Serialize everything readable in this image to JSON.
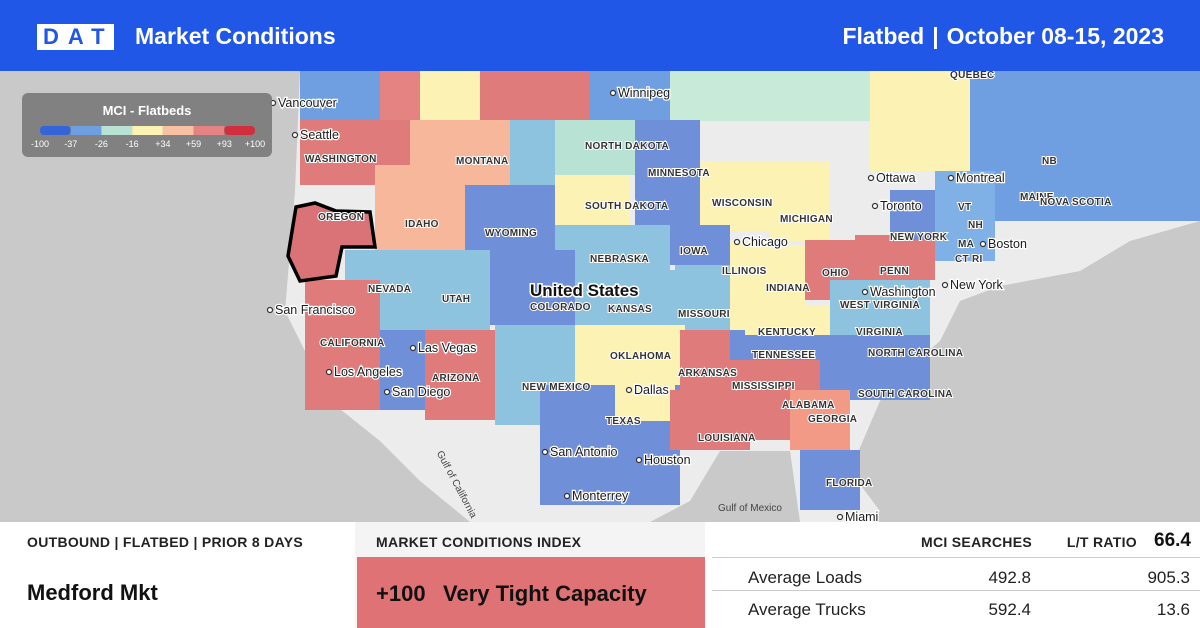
{
  "header": {
    "logo": "DAT",
    "title": "Market Conditions",
    "equipment": "Flatbed",
    "separator": "|",
    "date_range": "October 08-15, 2023"
  },
  "legend": {
    "title": "MCI - Flatbeds",
    "ticks": [
      {
        "value": -100,
        "label": "-100"
      },
      {
        "value": -37,
        "label": "-37"
      },
      {
        "value": -26,
        "label": "-26"
      },
      {
        "value": -16,
        "label": "-16"
      },
      {
        "value": 34,
        "label": "+34"
      },
      {
        "value": 59,
        "label": "+59"
      },
      {
        "value": 93,
        "label": "+93"
      },
      {
        "value": 100,
        "label": "+100"
      }
    ],
    "colors": [
      "#3563d8",
      "#6f9fe0",
      "#b7e2d4",
      "#fbf2b4",
      "#f7c2a4",
      "#e58383",
      "#d12f3e"
    ]
  },
  "map_labels": [
    "Vancouver",
    "Seattle",
    "WASHINGTON",
    "OREGON",
    "IDAHO",
    "MONTANA",
    "NORTH DAKOTA",
    "SOUTH DAKOTA",
    "WYOMING",
    "NEBRASKA",
    "NEVADA",
    "UTAH",
    "COLORADO",
    "KANSAS",
    "United States",
    "San Francisco",
    "CALIFORNIA",
    "Las Vegas",
    "ARIZONA",
    "NEW MEXICO",
    "Los Angeles",
    "San Diego",
    "OKLAHOMA",
    "Dallas",
    "TEXAS",
    "San Antonio",
    "Houston",
    "Monterrey",
    "Gulf of California",
    "Gulf of Mexico",
    "Miami",
    "FLORIDA",
    "LOUISIANA",
    "MISSISSIPPI",
    "ALABAMA",
    "GEORGIA",
    "ARKANSAS",
    "TENNESSEE",
    "MISSOURI",
    "IOWA",
    "MINNESOTA",
    "Winnipeg",
    "WISCONSIN",
    "MICHIGAN",
    "Chicago",
    "ILLINOIS",
    "INDIANA",
    "OHIO",
    "KENTUCKY",
    "WEST VIRGINIA",
    "VIRGINIA",
    "Washington",
    "PENN",
    "NORTH CAROLINA",
    "SOUTH CAROLINA",
    "New York",
    "NEW YORK",
    "Toronto",
    "Ottawa",
    "Montreal",
    "QUEBEC",
    "MAINE",
    "NOVA SCOTIA",
    "NB",
    "VT",
    "NH",
    "MA",
    "CT RI",
    "Boston"
  ],
  "panel": {
    "outbound_heading": "OUTBOUND | FLATBED | PRIOR 8 DAYS",
    "market": "Medford Mkt",
    "mci_heading": "MARKET CONDITIONS INDEX",
    "mci": {
      "value": 100,
      "label": "+100"
    },
    "mci_text": "Very Tight Capacity",
    "mci_color": "#df7275",
    "col_searches": "MCI SEARCHES",
    "col_ratio": "L/T RATIO",
    "ratio": 66.4,
    "rows": [
      {
        "label": "Average Loads",
        "searches": 492.8,
        "ratio": 905.3
      },
      {
        "label": "Average Trucks",
        "searches": 592.4,
        "ratio": 13.6
      }
    ]
  }
}
